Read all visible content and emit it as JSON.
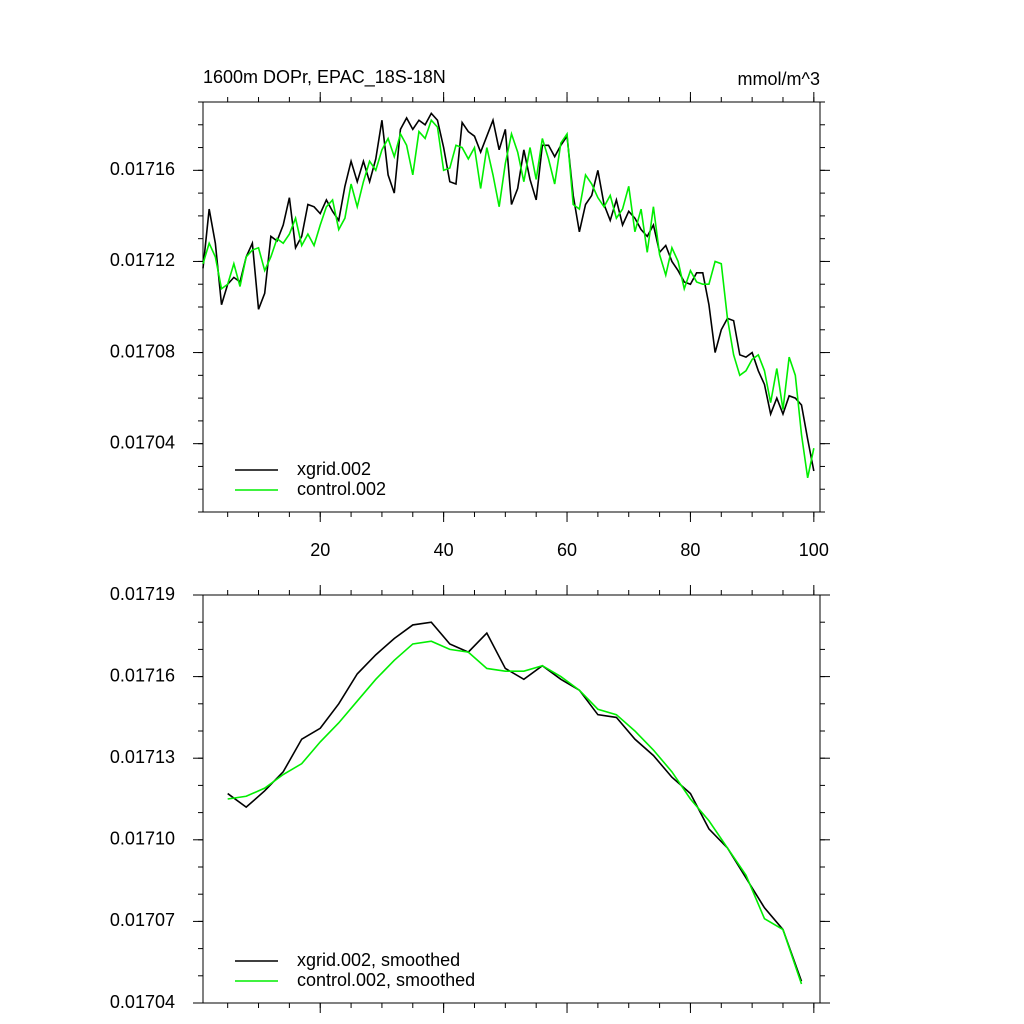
{
  "chart_data": [
    {
      "type": "line",
      "title": "1600m DOPr, EPAC_18S-18N",
      "units": "mmol/m^3",
      "x": [
        1,
        2,
        3,
        4,
        5,
        6,
        7,
        8,
        9,
        10,
        11,
        12,
        13,
        14,
        15,
        16,
        17,
        18,
        19,
        20,
        21,
        22,
        23,
        24,
        25,
        26,
        27,
        28,
        29,
        30,
        31,
        32,
        33,
        34,
        35,
        36,
        37,
        38,
        39,
        40,
        41,
        42,
        43,
        44,
        45,
        46,
        47,
        48,
        49,
        50,
        51,
        52,
        53,
        54,
        55,
        56,
        57,
        58,
        59,
        60,
        61,
        62,
        63,
        64,
        65,
        66,
        67,
        68,
        69,
        70,
        71,
        72,
        73,
        74,
        75,
        76,
        77,
        78,
        79,
        80,
        81,
        82,
        83,
        84,
        85,
        86,
        87,
        88,
        89,
        90,
        91,
        92,
        93,
        94,
        95,
        96,
        97,
        98,
        99,
        100
      ],
      "series": [
        {
          "name": "xgrid.002",
          "color": "#000000",
          "values": [
            0.017117,
            0.017143,
            0.017128,
            0.017101,
            0.01711,
            0.017113,
            0.017111,
            0.017122,
            0.017128,
            0.017099,
            0.017106,
            0.017131,
            0.017129,
            0.017136,
            0.017148,
            0.017126,
            0.017131,
            0.017145,
            0.017144,
            0.017141,
            0.017147,
            0.017142,
            0.017138,
            0.017153,
            0.017164,
            0.017155,
            0.017164,
            0.017155,
            0.017165,
            0.017182,
            0.017158,
            0.01715,
            0.017178,
            0.017183,
            0.017178,
            0.017182,
            0.01718,
            0.017185,
            0.017182,
            0.01717,
            0.017155,
            0.017154,
            0.017181,
            0.017177,
            0.017175,
            0.017168,
            0.017175,
            0.017182,
            0.017169,
            0.017178,
            0.017145,
            0.017152,
            0.017169,
            0.017156,
            0.017147,
            0.017171,
            0.017171,
            0.017166,
            0.017171,
            0.017175,
            0.017149,
            0.017133,
            0.017145,
            0.017149,
            0.01716,
            0.017145,
            0.017138,
            0.017147,
            0.017136,
            0.017142,
            0.017139,
            0.017134,
            0.017131,
            0.017136,
            0.017124,
            0.017127,
            0.01712,
            0.017116,
            0.017111,
            0.01711,
            0.017115,
            0.017115,
            0.017101,
            0.01708,
            0.01709,
            0.017095,
            0.017094,
            0.017079,
            0.017078,
            0.01708,
            0.017072,
            0.017066,
            0.017053,
            0.01706,
            0.017053,
            0.017061,
            0.01706,
            0.017057,
            0.017042,
            0.017028
          ]
        },
        {
          "name": "control.002",
          "color": "#00ee00",
          "values": [
            0.017119,
            0.017128,
            0.017122,
            0.017108,
            0.01711,
            0.017119,
            0.017109,
            0.017122,
            0.017125,
            0.017126,
            0.017116,
            0.017122,
            0.01713,
            0.017128,
            0.017132,
            0.017139,
            0.017127,
            0.017132,
            0.017127,
            0.017136,
            0.017144,
            0.017147,
            0.017134,
            0.017139,
            0.017154,
            0.017144,
            0.017155,
            0.017164,
            0.01716,
            0.017169,
            0.017174,
            0.017166,
            0.017176,
            0.017171,
            0.017158,
            0.017177,
            0.017174,
            0.017182,
            0.017179,
            0.01716,
            0.017161,
            0.017171,
            0.01717,
            0.017165,
            0.01717,
            0.017152,
            0.01717,
            0.017158,
            0.017144,
            0.017163,
            0.017176,
            0.017168,
            0.017155,
            0.01717,
            0.017156,
            0.017174,
            0.017165,
            0.017154,
            0.017172,
            0.017176,
            0.017145,
            0.017143,
            0.017158,
            0.017154,
            0.017148,
            0.017144,
            0.017149,
            0.017139,
            0.017143,
            0.017153,
            0.017133,
            0.017143,
            0.017124,
            0.017144,
            0.017123,
            0.017114,
            0.017126,
            0.01712,
            0.017108,
            0.017116,
            0.017111,
            0.01711,
            0.01711,
            0.01712,
            0.017119,
            0.017095,
            0.017079,
            0.01707,
            0.017072,
            0.017077,
            0.017079,
            0.017072,
            0.017058,
            0.017073,
            0.017055,
            0.017078,
            0.01707,
            0.017044,
            0.017025,
            0.017038
          ]
        }
      ],
      "xlim": [
        1,
        101
      ],
      "xticks": [
        20,
        40,
        60,
        80,
        100
      ],
      "xtick_labels": true,
      "ylim": [
        0.01701,
        0.01719
      ],
      "yticks": [
        0.01716,
        0.01712,
        0.01708,
        0.01704
      ],
      "xminor": 4,
      "yminor": 4,
      "legend": "lower-left"
    },
    {
      "type": "line",
      "x": [
        5,
        8,
        11,
        14,
        17,
        20,
        23,
        26,
        29,
        32,
        35,
        38,
        41,
        44,
        47,
        50,
        53,
        56,
        59,
        62,
        65,
        68,
        71,
        74,
        77,
        80,
        83,
        86,
        89,
        92,
        95,
        98
      ],
      "series": [
        {
          "name": "xgrid.002, smoothed",
          "color": "#000000",
          "values": [
            0.017117,
            0.017112,
            0.017118,
            0.017125,
            0.017137,
            0.017141,
            0.01715,
            0.017161,
            0.017168,
            0.017174,
            0.017179,
            0.01718,
            0.017172,
            0.017169,
            0.017176,
            0.017163,
            0.017159,
            0.017164,
            0.017159,
            0.017155,
            0.017146,
            0.017145,
            0.017137,
            0.017131,
            0.017123,
            0.017117,
            0.017104,
            0.017097,
            0.017086,
            0.017075,
            0.017067,
            0.017048
          ]
        },
        {
          "name": "control.002, smoothed",
          "color": "#00ee00",
          "values": [
            0.017115,
            0.017116,
            0.017119,
            0.017124,
            0.017128,
            0.017136,
            0.017143,
            0.017151,
            0.017159,
            0.017166,
            0.017172,
            0.017173,
            0.01717,
            0.017169,
            0.017163,
            0.017162,
            0.017162,
            0.017164,
            0.01716,
            0.017155,
            0.017148,
            0.017146,
            0.01714,
            0.017133,
            0.017125,
            0.017115,
            0.017107,
            0.017097,
            0.017087,
            0.017071,
            0.017067,
            0.017047
          ]
        }
      ],
      "xlim": [
        1,
        101
      ],
      "xticks": [
        20,
        40,
        60,
        80,
        100
      ],
      "xtick_labels": false,
      "ylim": [
        0.01704,
        0.01719
      ],
      "yticks": [
        0.01719,
        0.01716,
        0.01713,
        {
          "value": 0.0171,
          "label": "0.01710"
        },
        0.01707,
        0.01704
      ],
      "xminor": 4,
      "yminor": 3,
      "legend": "lower-left"
    }
  ]
}
